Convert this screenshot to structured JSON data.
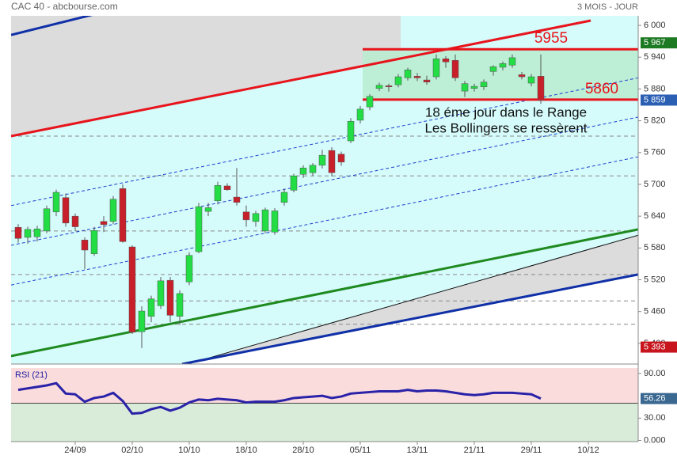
{
  "chart_data": [
    {
      "type": "candlestick",
      "title": "CAC 40 - abcbourse.com",
      "subtitle": "3 MOIS - JOUR",
      "categories": [
        null,
        null,
        null,
        null,
        null,
        null,
        "24/09",
        null,
        null,
        null,
        null,
        null,
        "02/10",
        null,
        null,
        null,
        null,
        null,
        "10/10",
        null,
        null,
        null,
        null,
        null,
        "18/10",
        null,
        null,
        null,
        null,
        null,
        "28/10",
        null,
        null,
        null,
        null,
        null,
        "05/11",
        null,
        null,
        null,
        null,
        null,
        "13/11",
        null,
        null,
        null,
        null,
        null,
        "21/11",
        null,
        null,
        null,
        null,
        null,
        "29/11",
        null,
        null,
        null,
        null,
        null,
        "10/12",
        null,
        null,
        null,
        null,
        null
      ],
      "open": [
        5619,
        5600,
        5601,
        5612,
        5648,
        5675,
        5640,
        5595,
        5569,
        5630,
        5630,
        5692,
        5582,
        5422,
        5451,
        5471,
        5519,
        5451,
        5516,
        5573,
        5649,
        5669,
        5697,
        5676,
        5648,
        5630,
        5612,
        5610,
        5666,
        5689,
        5719,
        5722,
        5736,
        5764,
        5757,
        5782,
        5821,
        5846,
        5881,
        5886,
        5888,
        5901,
        5904,
        5897,
        5903,
        5937,
        5934,
        5876,
        5881,
        5884,
        5913,
        5921,
        5925,
        5907,
        5891,
        5904,
        null,
        null,
        null,
        null,
        null,
        null,
        null,
        null,
        null,
        null
      ],
      "high": [
        5625,
        5620,
        5622,
        5660,
        5690,
        5683,
        5645,
        5600,
        5620,
        5640,
        5678,
        5700,
        5585,
        5470,
        5490,
        5525,
        5525,
        5500,
        5572,
        5665,
        5665,
        5705,
        5702,
        5731,
        5660,
        5650,
        5656,
        5655,
        5692,
        5720,
        5736,
        5740,
        5765,
        5770,
        5762,
        5825,
        5848,
        5870,
        5892,
        5890,
        5908,
        5920,
        5910,
        5905,
        5945,
        5942,
        5945,
        5895,
        5890,
        5898,
        5925,
        5932,
        5945,
        5912,
        5908,
        5945,
        null,
        null,
        null,
        null,
        null,
        null,
        null,
        null,
        null,
        null
      ],
      "low": [
        5590,
        5588,
        5592,
        5608,
        5640,
        5620,
        5612,
        5540,
        5565,
        5610,
        5625,
        5590,
        5418,
        5391,
        5440,
        5465,
        5440,
        5435,
        5510,
        5570,
        5640,
        5662,
        5688,
        5660,
        5620,
        5620,
        5608,
        5605,
        5660,
        5685,
        5712,
        5716,
        5730,
        5715,
        5735,
        5778,
        5815,
        5840,
        5876,
        5875,
        5883,
        5896,
        5895,
        5888,
        5898,
        5920,
        5895,
        5865,
        5875,
        5878,
        5905,
        5915,
        5920,
        5898,
        5885,
        5852,
        null,
        null,
        null,
        null,
        null,
        null,
        null,
        null,
        null,
        null
      ],
      "close": [
        5598,
        5615,
        5616,
        5654,
        5685,
        5627,
        5620,
        5576,
        5613,
        5624,
        5672,
        5592,
        5421,
        5461,
        5484,
        5518,
        5453,
        5494,
        5566,
        5658,
        5656,
        5698,
        5690,
        5666,
        5633,
        5645,
        5652,
        5650,
        5685,
        5716,
        5731,
        5736,
        5755,
        5722,
        5742,
        5819,
        5842,
        5866,
        5887,
        5884,
        5903,
        5916,
        5901,
        5893,
        5937,
        5931,
        5901,
        5890,
        5885,
        5893,
        5922,
        5928,
        5939,
        5903,
        5903,
        5859,
        null,
        null,
        null,
        null,
        null,
        null,
        null,
        null,
        null,
        null
      ],
      "up_color": "#22dd44",
      "down_color": "#c8202a",
      "ylim": [
        5361,
        6018
      ],
      "yticks": [
        {
          "value": 5400,
          "label": "5 400"
        },
        {
          "value": 5460,
          "label": "5 460"
        },
        {
          "value": 5520,
          "label": "5 520"
        },
        {
          "value": 5580,
          "label": "5 580"
        },
        {
          "value": 5640,
          "label": "5 640"
        },
        {
          "value": 5700,
          "label": "5 700"
        },
        {
          "value": 5760,
          "label": "5 760"
        },
        {
          "value": 5820,
          "label": "5 820"
        },
        {
          "value": 5880,
          "label": "5 880"
        },
        {
          "value": 5940,
          "label": "5 940"
        },
        {
          "value": 6000,
          "label": "6 000"
        }
      ],
      "price_badges": [
        {
          "value": 5967,
          "label": "5 967",
          "color": "#1c7a22"
        },
        {
          "value": 5859,
          "label": "5 859",
          "color": "#2b5fb4"
        },
        {
          "value": 5393,
          "label": "5 393",
          "color": "#c8141c"
        }
      ],
      "range_levels": [
        5955,
        5860
      ],
      "range_color": "#e8141c",
      "range_fill": "#b8ecd0",
      "annotation": [
        "18 éme jour dans le Range",
        "Les Bollingers se ressèrent"
      ],
      "levels": [
        5791,
        5716,
        5612,
        5530,
        5480,
        5436
      ],
      "trendlines": [
        {
          "color": "#e8141c",
          "width": 3,
          "dash": false,
          "x": [
            -0.75,
            60.25
          ],
          "y": [
            5791,
            6009
          ]
        },
        {
          "color": "#1030a8",
          "width": 3,
          "dash": false,
          "x": [
            -0.75,
            11.4
          ],
          "y": [
            5982,
            6036
          ]
        },
        {
          "color": "#1f8a1f",
          "width": 3,
          "dash": false,
          "x": [
            -0.75,
            65.25
          ],
          "y": [
            5376,
            5615
          ]
        },
        {
          "color": "#111111",
          "width": 1,
          "dash": false,
          "x": [
            17.25,
            65.25
          ],
          "y": [
            5358,
            5604
          ]
        },
        {
          "color": "#1030a8",
          "width": 3,
          "dash": false,
          "x": [
            17.25,
            65.25
          ],
          "y": [
            5361,
            5530
          ]
        },
        {
          "color": "#1a3fd0",
          "width": 1,
          "dash": true,
          "x": [
            -0.75,
            65.25
          ],
          "y": [
            5660,
            5901
          ]
        },
        {
          "color": "#1a3fd0",
          "width": 1,
          "dash": true,
          "x": [
            -0.75,
            65.25
          ],
          "y": [
            5585,
            5827
          ]
        },
        {
          "color": "#1a3fd0",
          "width": 1,
          "dash": true,
          "x": [
            -0.75,
            65.25
          ],
          "y": [
            5510,
            5752
          ]
        }
      ]
    },
    {
      "type": "line",
      "title": "RSI (21)",
      "color": "#2a22a8",
      "values": [
        68,
        70,
        72,
        74,
        77,
        63,
        62,
        52,
        57,
        59,
        64,
        53,
        36,
        37,
        42,
        45,
        40,
        44,
        51,
        55,
        54,
        56,
        55,
        54,
        51,
        52,
        52,
        52,
        54,
        57,
        58,
        59,
        60,
        57,
        59,
        63,
        64,
        65,
        66,
        66,
        66,
        68,
        66,
        67,
        67,
        66,
        64,
        62,
        61,
        62,
        64,
        64,
        64,
        63,
        62,
        56.26,
        null,
        null,
        null,
        null,
        null,
        null,
        null,
        null,
        null,
        null
      ],
      "ylim": [
        -1.6,
        97.4
      ],
      "yticks": [
        {
          "value": 90,
          "label": "90.00"
        },
        {
          "value": 30,
          "label": "30.00"
        },
        {
          "value": 0,
          "label": "0.000"
        }
      ],
      "midline": 50,
      "upper_color": "#fbdcdc",
      "lower_color": "#d9ecd9",
      "last_value": 56.26,
      "badge_color": "#3a6890"
    }
  ]
}
